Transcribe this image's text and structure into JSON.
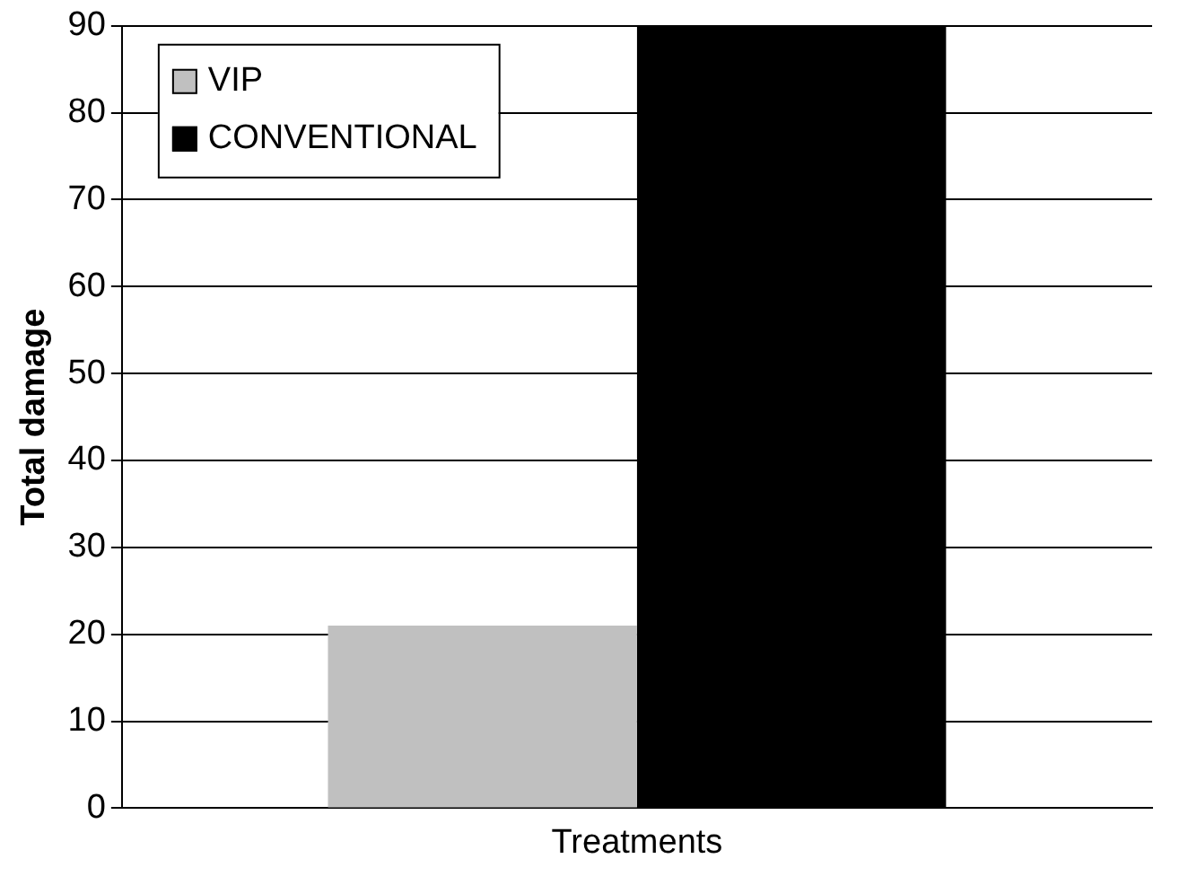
{
  "chart_data": {
    "type": "bar",
    "ylabel": "Total damage",
    "categories": [
      "Treatments"
    ],
    "series": [
      {
        "name": "VIP",
        "color": "#c0c0c0",
        "values": [
          21
        ]
      },
      {
        "name": "CONVENTIONAL",
        "color": "#000000",
        "values": [
          90
        ]
      }
    ],
    "ylim": [
      0,
      90
    ],
    "yticks": [
      0,
      10,
      20,
      30,
      40,
      50,
      60,
      70,
      80,
      90
    ],
    "grid": "y",
    "legend": "top left"
  }
}
